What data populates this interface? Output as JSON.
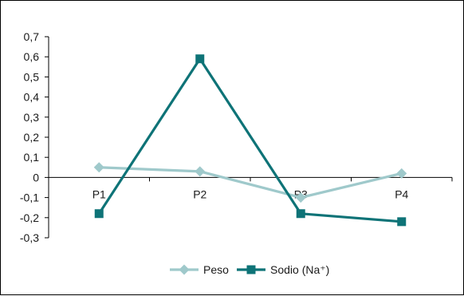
{
  "chart_data": {
    "type": "line",
    "categories": [
      "P1",
      "P2",
      "P3",
      "P4"
    ],
    "series": [
      {
        "name": "Peso",
        "values": [
          0.05,
          0.03,
          -0.1,
          0.02
        ],
        "color": "#9fc9cb",
        "marker": "diamond"
      },
      {
        "name": "Sodio (Na⁺)",
        "values": [
          -0.18,
          0.59,
          -0.18,
          -0.22
        ],
        "color": "#0e7377",
        "marker": "square"
      }
    ],
    "ylim": [
      -0.3,
      0.7
    ],
    "yticks": [
      0.7,
      0.6,
      0.5,
      0.4,
      0.3,
      0.2,
      0.1,
      0,
      -0.1,
      -0.2,
      -0.3
    ],
    "ytick_labels": [
      "0,7",
      "0,6",
      "0,5",
      "0,4",
      "0,3",
      "0,2",
      "0,1",
      "0",
      "-0,1",
      "-0,2",
      "-0,3"
    ],
    "grid": false,
    "legend_position": "bottom-center",
    "title": "",
    "xlabel": "",
    "ylabel": ""
  }
}
